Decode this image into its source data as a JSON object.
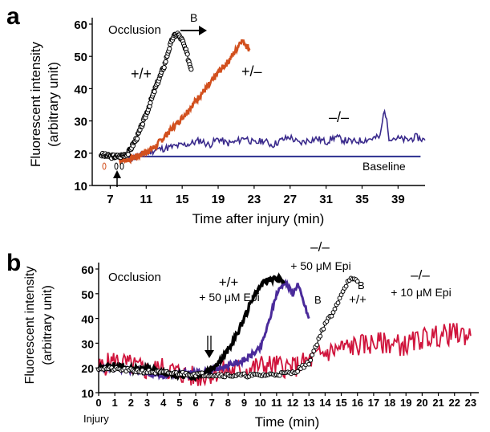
{
  "chart_data": [
    {
      "panel": "a",
      "type": "line",
      "xlabel": "Time after injury (min)",
      "ylabel": [
        "Fluorescent intensity",
        "(arbitrary unit)"
      ],
      "xlim": [
        5,
        42
      ],
      "ylim": [
        10,
        60
      ],
      "xticks": [
        7,
        11,
        15,
        19,
        23,
        27,
        31,
        35,
        39
      ],
      "yticks": [
        10,
        20,
        30,
        40,
        50,
        60
      ],
      "colors": {
        "wt": "#000000",
        "het": "#d2501e",
        "ko": "#3a2a8c",
        "baseline": "#2b2f8f"
      },
      "annotations": {
        "occlusion": "Occlusion",
        "b": "B",
        "wt": "+/+",
        "het": "+/–",
        "ko": "–/–",
        "baseline": "Baseline"
      },
      "series": [
        {
          "name": "+/+",
          "color": "#000000",
          "style": "open-circles",
          "x": [
            6,
            7,
            8,
            9,
            10,
            11,
            12,
            13,
            13.5,
            14,
            14.5,
            15,
            15.5,
            16
          ],
          "y": [
            19.5,
            19,
            19,
            20,
            25,
            32,
            40,
            47,
            52,
            56,
            57,
            55,
            51,
            46
          ]
        },
        {
          "name": "+/–",
          "color": "#d2501e",
          "x": [
            8,
            9,
            10,
            11,
            12,
            13,
            14,
            15,
            16,
            17,
            18,
            19,
            20,
            21,
            21.5,
            22,
            22.5
          ],
          "y": [
            18,
            18,
            19,
            20.5,
            22,
            25,
            28,
            31,
            34.5,
            38,
            41,
            45,
            48,
            52,
            55,
            54,
            52
          ]
        },
        {
          "name": "–/–",
          "color": "#3a2a8c",
          "x": [
            9,
            10,
            11,
            12,
            13,
            14,
            15,
            16,
            17,
            18,
            19,
            20,
            21,
            22,
            23,
            24,
            25,
            26,
            27,
            28,
            29,
            30,
            31,
            32,
            33,
            34,
            35,
            36,
            37,
            37.5,
            38,
            39,
            40,
            41,
            42
          ],
          "y": [
            18,
            19,
            20,
            21,
            21.5,
            22,
            22.5,
            23,
            24,
            22.5,
            24.5,
            23,
            23.5,
            25,
            23,
            24,
            22.5,
            24,
            25,
            23,
            24,
            24.5,
            23.5,
            25,
            24,
            23.5,
            24,
            24.5,
            25,
            34,
            25,
            24.5,
            24,
            25,
            24
          ]
        },
        {
          "name": "Baseline",
          "color": "#2b2f8f",
          "x": [
            7,
            41.5
          ],
          "y": [
            19,
            19
          ]
        }
      ]
    },
    {
      "panel": "b",
      "type": "line",
      "xlabel": "Time (min)",
      "ylabel": [
        "Fluorescent intensity",
        "(arbitrary unit)"
      ],
      "xlim": [
        0,
        23.5
      ],
      "ylim": [
        10,
        60
      ],
      "xticks": [
        0,
        1,
        2,
        3,
        4,
        5,
        6,
        7,
        8,
        9,
        10,
        11,
        12,
        13,
        14,
        15,
        16,
        17,
        18,
        19,
        20,
        21,
        22,
        23
      ],
      "yticks": [
        10,
        20,
        30,
        40,
        50,
        60
      ],
      "x_note": "Injury",
      "colors": {
        "wt": "#000000",
        "ko": "#4a2a9a",
        "ko_low": "#d0143c"
      },
      "annotations": {
        "occlusion": "Occlusion",
        "wt_epi": [
          "+/+",
          "+ 50 μM Epi"
        ],
        "ko_epi": [
          "–/–",
          "+ 50 μM Epi"
        ],
        "ko_low_epi": [
          "–/–",
          "+ 10 μM Epi"
        ],
        "b1": "B",
        "b2": "B",
        "wt": "+/+"
      },
      "series": [
        {
          "name": "+/+ + 50 μM Epi",
          "color": "#000000",
          "x": [
            0,
            1,
            2,
            3,
            4,
            5,
            6,
            7,
            7.5,
            8,
            8.5,
            9,
            9.5,
            10,
            10.5,
            11,
            11.5
          ],
          "y": [
            20,
            21,
            19.5,
            20,
            18,
            17,
            16.5,
            20,
            23,
            27,
            33,
            40,
            48,
            53,
            56,
            56,
            55
          ]
        },
        {
          "name": "–/– + 50 μM Epi",
          "color": "#4a2a9a",
          "x": [
            0,
            1,
            2,
            3,
            4,
            5,
            6,
            7,
            8,
            9,
            10,
            10.5,
            11,
            11.5,
            12,
            12.3,
            12.6,
            13
          ],
          "y": [
            20,
            20,
            19,
            18,
            17,
            18,
            18,
            19,
            21,
            23,
            28,
            38,
            50,
            55,
            50,
            54,
            48,
            40
          ]
        },
        {
          "name": "–/– + 10 μM Epi",
          "color": "#d0143c",
          "x": [
            0,
            1,
            2,
            3,
            4,
            5,
            6,
            7,
            8,
            9,
            10,
            11,
            12,
            13,
            14,
            15,
            16,
            17,
            18,
            19,
            20,
            21,
            22,
            23
          ],
          "y": [
            20,
            23,
            21,
            19,
            20,
            18,
            16,
            18,
            19,
            19,
            21,
            21,
            20,
            23,
            26,
            28,
            29,
            30,
            30,
            29,
            32,
            33,
            34,
            33
          ]
        },
        {
          "name": "+/+",
          "color": "#000000",
          "style": "open-circles",
          "x": [
            0,
            2,
            4,
            6,
            8,
            10,
            12,
            13,
            13.5,
            14,
            14.5,
            15,
            15.5,
            16
          ],
          "y": [
            20,
            19,
            18,
            17.5,
            17,
            17,
            18,
            22,
            30,
            38,
            42,
            50,
            56,
            55
          ]
        }
      ]
    }
  ]
}
